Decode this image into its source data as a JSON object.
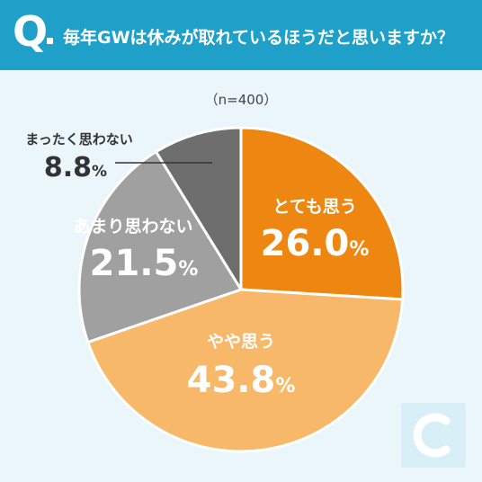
{
  "header": {
    "q_mark": "Q",
    "question": "毎年GWは休みが取れているほうだと思いますか？",
    "background": "#1ea0c8"
  },
  "sample_note": "（n=400）",
  "chart_data": {
    "type": "pie",
    "title": "毎年GWは休みが取れているほうだと思いますか？",
    "subtitle": "（n=400）",
    "unit": "%",
    "slices": [
      {
        "label": "とても思う",
        "value": 26.0,
        "value_text": "26.0",
        "color": "#ee8712"
      },
      {
        "label": "やや思う",
        "value": 43.8,
        "value_text": "43.8",
        "color": "#f8b86a"
      },
      {
        "label": "あまり思わない",
        "value": 21.5,
        "value_text": "21.5",
        "color": "#a0a0a0"
      },
      {
        "label": "まったく思わない",
        "value": 8.8,
        "value_text": "8.8",
        "color": "#6e6e6e"
      }
    ]
  }
}
